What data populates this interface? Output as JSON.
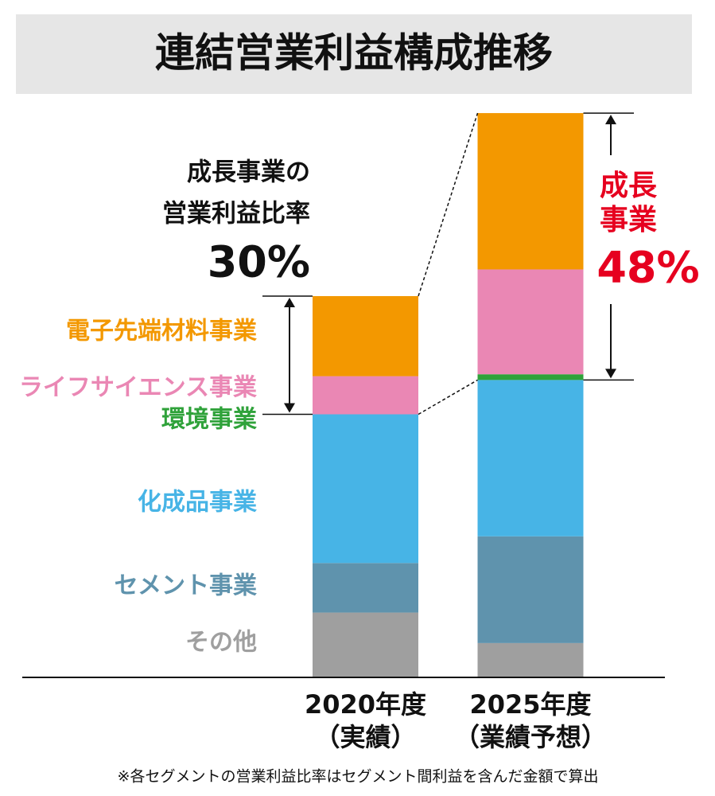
{
  "chart_data": {
    "type": "stacked_bar",
    "title": "連結営業利益構成推移",
    "categories": [
      "2020年度",
      "2025年度"
    ],
    "category_notes": [
      "（実績）",
      "（業績予想）"
    ],
    "series": [
      {
        "name": "その他",
        "color": "#9f9f9f",
        "values": [
          17,
          9
        ]
      },
      {
        "name": "セメント事業",
        "color": "#5f93ad",
        "values": [
          13,
          28
        ]
      },
      {
        "name": "化成品事業",
        "color": "#47b4e6",
        "values": [
          39,
          41
        ]
      },
      {
        "name": "環境事業",
        "color": "#2fa23a",
        "values": [
          0,
          1.5
        ]
      },
      {
        "name": "ライフサイエンス事業",
        "color": "#ea87b4",
        "values": [
          10,
          27.5
        ]
      },
      {
        "name": "電子先端材料事業",
        "color": "#f39800",
        "values": [
          21,
          41
        ]
      }
    ],
    "ylim": [
      0,
      150
    ],
    "annotations": {
      "left": [
        "成長事業の",
        "営業利益比率",
        "30%"
      ],
      "right": [
        "成長",
        "事業",
        "48%"
      ]
    },
    "footnote": "※各セグメントの営業利益比率はセグメント間利益を含んだ金額で算出"
  }
}
